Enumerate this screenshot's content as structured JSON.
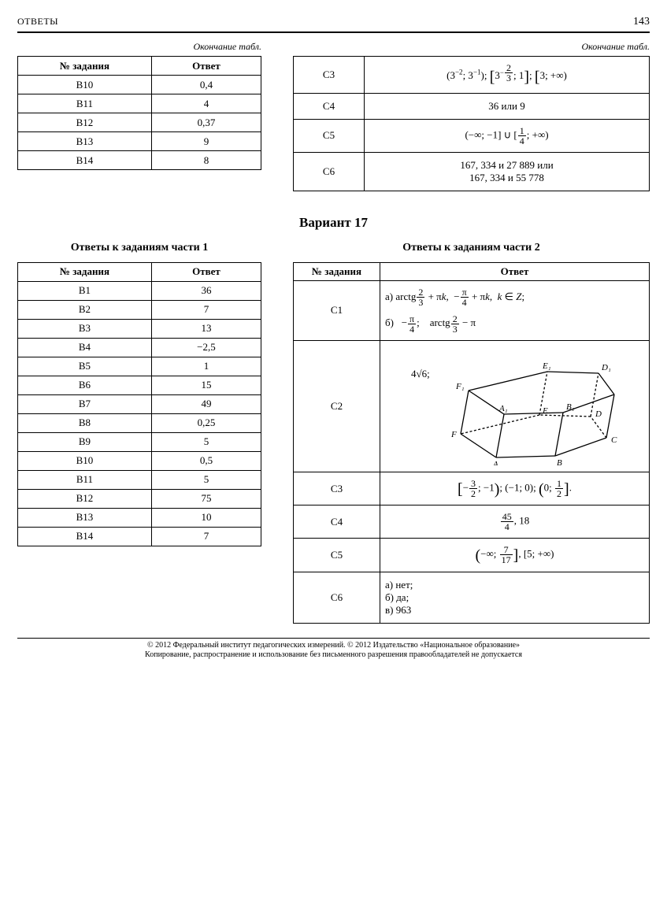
{
  "header": {
    "left": "ОТВЕТЫ",
    "page": "143"
  },
  "endcap": "Окончание табл.",
  "top_left": {
    "head": [
      "№ задания",
      "Ответ"
    ],
    "rows": [
      [
        "B10",
        "0,4"
      ],
      [
        "B11",
        "4"
      ],
      [
        "B12",
        "0,37"
      ],
      [
        "B13",
        "9"
      ],
      [
        "B14",
        "8"
      ]
    ]
  },
  "top_right": {
    "rows": [
      {
        "task": "C3",
        "answer_html": "(3<span class='sup'>−2</span>; 3<span class='sup'>−1</span>); <span class='bigb'>[</span>3<span class='sup'>−<span class='frac'><span class='n'>2</span><span class='d'>3</span></span></span>; 1<span class='bigb'>]</span>; <span class='bigb'>[</span>3; +∞)"
      },
      {
        "task": "C4",
        "answer_html": "36 или 9"
      },
      {
        "task": "C5",
        "answer_html": "(−∞; −1] ∪ [<span class='frac'><span class='n'>1</span><span class='d'>4</span></span>; +∞)"
      },
      {
        "task": "C6",
        "answer_html": "167, 334 и 27 889 или<br>167, 334 и 55 778"
      }
    ]
  },
  "variant_title": "Вариант 17",
  "sect1_title": "Ответы к заданиям части 1",
  "sect2_title": "Ответы к заданиям части 2",
  "part1": {
    "head": [
      "№ задания",
      "Ответ"
    ],
    "rows": [
      [
        "B1",
        "36"
      ],
      [
        "B2",
        "7"
      ],
      [
        "B3",
        "13"
      ],
      [
        "B4",
        "−2,5"
      ],
      [
        "B5",
        "1"
      ],
      [
        "B6",
        "15"
      ],
      [
        "B7",
        "49"
      ],
      [
        "B8",
        "0,25"
      ],
      [
        "B9",
        "5"
      ],
      [
        "B10",
        "0,5"
      ],
      [
        "B11",
        "5"
      ],
      [
        "B12",
        "75"
      ],
      [
        "B13",
        "10"
      ],
      [
        "B14",
        "7"
      ]
    ]
  },
  "part2": {
    "head": [
      "№ задания",
      "Ответ"
    ],
    "c1": {
      "task": "C1",
      "a": "а) arctg<span class='frac'><span class='n'>2</span><span class='d'>3</span></span> + π<i>k</i>, &nbsp;−<span class='frac'><span class='n'>π</span><span class='d'>4</span></span> + π<i>k</i>, &nbsp;<i>k</i> ∈ <i>Z</i>;",
      "b": "б) &nbsp; −<span class='frac'><span class='n'>π</span><span class='d'>4</span></span>; &nbsp;&nbsp; arctg<span class='frac'><span class='n'>2</span><span class='d'>3</span></span> − π"
    },
    "c2": {
      "task": "C2",
      "prefix": "4√6;"
    },
    "c3": {
      "task": "C3",
      "answer_html": "<span class='bigb'>[</span>−<span class='frac'><span class='n'>3</span><span class='d'>2</span></span>; −1<span class='bigb'>)</span>; (−1; 0); <span class='bigb'>(</span>0; <span class='frac'><span class='n'>1</span><span class='d'>2</span></span><span class='bigb'>]</span>."
    },
    "c4": {
      "task": "C4",
      "answer_html": "<span class='frac'><span class='n'>45</span><span class='d'>4</span></span>, 18"
    },
    "c5": {
      "task": "C5",
      "answer_html": "<span class='bigb'>(</span>−∞; <span class='frac'><span class='n'>7</span><span class='d'>17</span></span><span class='bigb'>]</span>, [5; +∞)"
    },
    "c6": {
      "task": "C6",
      "answer_html": "а) нет;<br>б) да;<br>в) 963"
    }
  },
  "prism": {
    "labels": {
      "A": "A",
      "B": "B",
      "C": "C",
      "D": "D",
      "E": "E",
      "F": "F",
      "A1": "A₁",
      "B1": "B₁",
      "C1": "C₁",
      "D1": "D₁",
      "E1": "E₁",
      "F1": "F₁"
    },
    "stroke": "#000",
    "stroke_width": 1.3,
    "dash": "3,2.5",
    "font_size": 11
  },
  "footer": {
    "l1": "© 2012 Федеральный институт педагогических измерений. © 2012 Издательство «Национальное образование»",
    "l2": "Копирование, распространение и использование без письменного разрешения правообладателей не допускается"
  }
}
